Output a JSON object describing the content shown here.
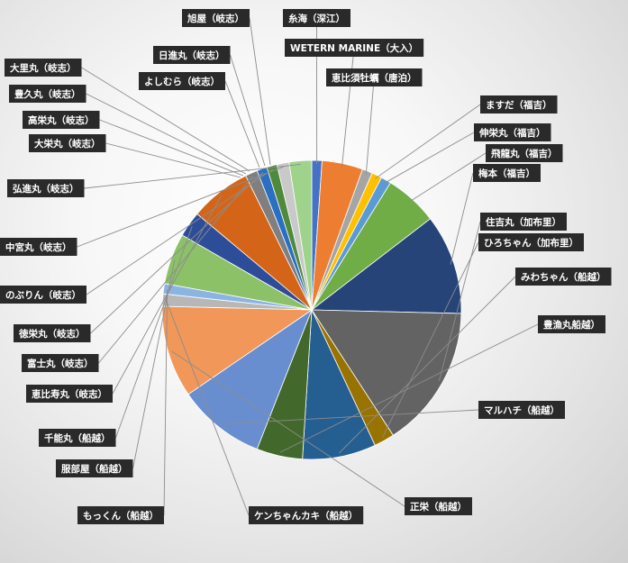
{
  "chart_data": {
    "type": "pie",
    "title": "",
    "start_angle_deg": 90,
    "direction": "clockwise",
    "slices": [
      {
        "label": "糸海（深江）",
        "value": 1.0,
        "color": "#4472c4"
      },
      {
        "label": "WETERN MARINE（大入）",
        "value": 4.0,
        "color": "#ed7d31"
      },
      {
        "label": "恵比須牡蠣（唐泊）",
        "value": 1.0,
        "color": "#a5a5a5"
      },
      {
        "label": "ますだ（福吉）",
        "value": 1.0,
        "color": "#ffc000"
      },
      {
        "label": "伸栄丸（福吉）",
        "value": 1.0,
        "color": "#5b9bd5"
      },
      {
        "label": "飛龍丸（福吉）",
        "value": 5.2,
        "color": "#70ad47"
      },
      {
        "label": "梅本（福吉）",
        "value": 9.8,
        "color": "#264478"
      },
      {
        "label": "住吉丸（加布里）",
        "value": 14.0,
        "color": "#636363"
      },
      {
        "label": "ひろちゃん（加布里）",
        "value": 2.0,
        "color": "#997300"
      },
      {
        "label": "みわちゃん（船越）",
        "value": 7.2,
        "color": "#255e91"
      },
      {
        "label": "豊漁丸船越）",
        "value": 4.5,
        "color": "#43682b"
      },
      {
        "label": "マルハチ（船越）",
        "value": 8.6,
        "color": "#698ed0"
      },
      {
        "label": "正栄（船越）",
        "value": 9.0,
        "color": "#f1975a"
      },
      {
        "label": "ケンちゃんカキ（船越）",
        "value": 1.2,
        "color": "#b7b7b7"
      },
      {
        "label": "もっくん（船越）",
        "value": 1.0,
        "color": "#8cb4e2"
      },
      {
        "label": "服部屋（船越）",
        "value": 5.0,
        "color": "#8cc168"
      },
      {
        "label": "千能丸（船越）",
        "value": 2.5,
        "color": "#2e4d99"
      },
      {
        "label": "恵比寿丸（岐志）",
        "value": 6.0,
        "color": "#d46518"
      },
      {
        "label": "富士丸（岐志）",
        "value": 1.2,
        "color": "#7f7f7f"
      },
      {
        "label": "徳栄丸（岐志）",
        "value": 1.0,
        "color": "#2a6fc1"
      },
      {
        "label": "のぶりん（岐志）",
        "value": 1.0,
        "color": "#4f8a3c"
      },
      {
        "label": "中宮丸（岐志）",
        "value": 1.2,
        "color": "#c9c9c9"
      },
      {
        "label": "弘進丸（岐志）",
        "value": 2.2,
        "color": "#9fd38c"
      }
    ],
    "extra_labels": [
      "旭屋（岐志）",
      "日進丸（岐志）",
      "よしむら（岐志）",
      "大里丸（岐志）",
      "豊久丸（岐志）",
      "高栄丸（岐志）",
      "大栄丸（岐志）"
    ],
    "legend": "none",
    "data_labels": "callouts"
  }
}
